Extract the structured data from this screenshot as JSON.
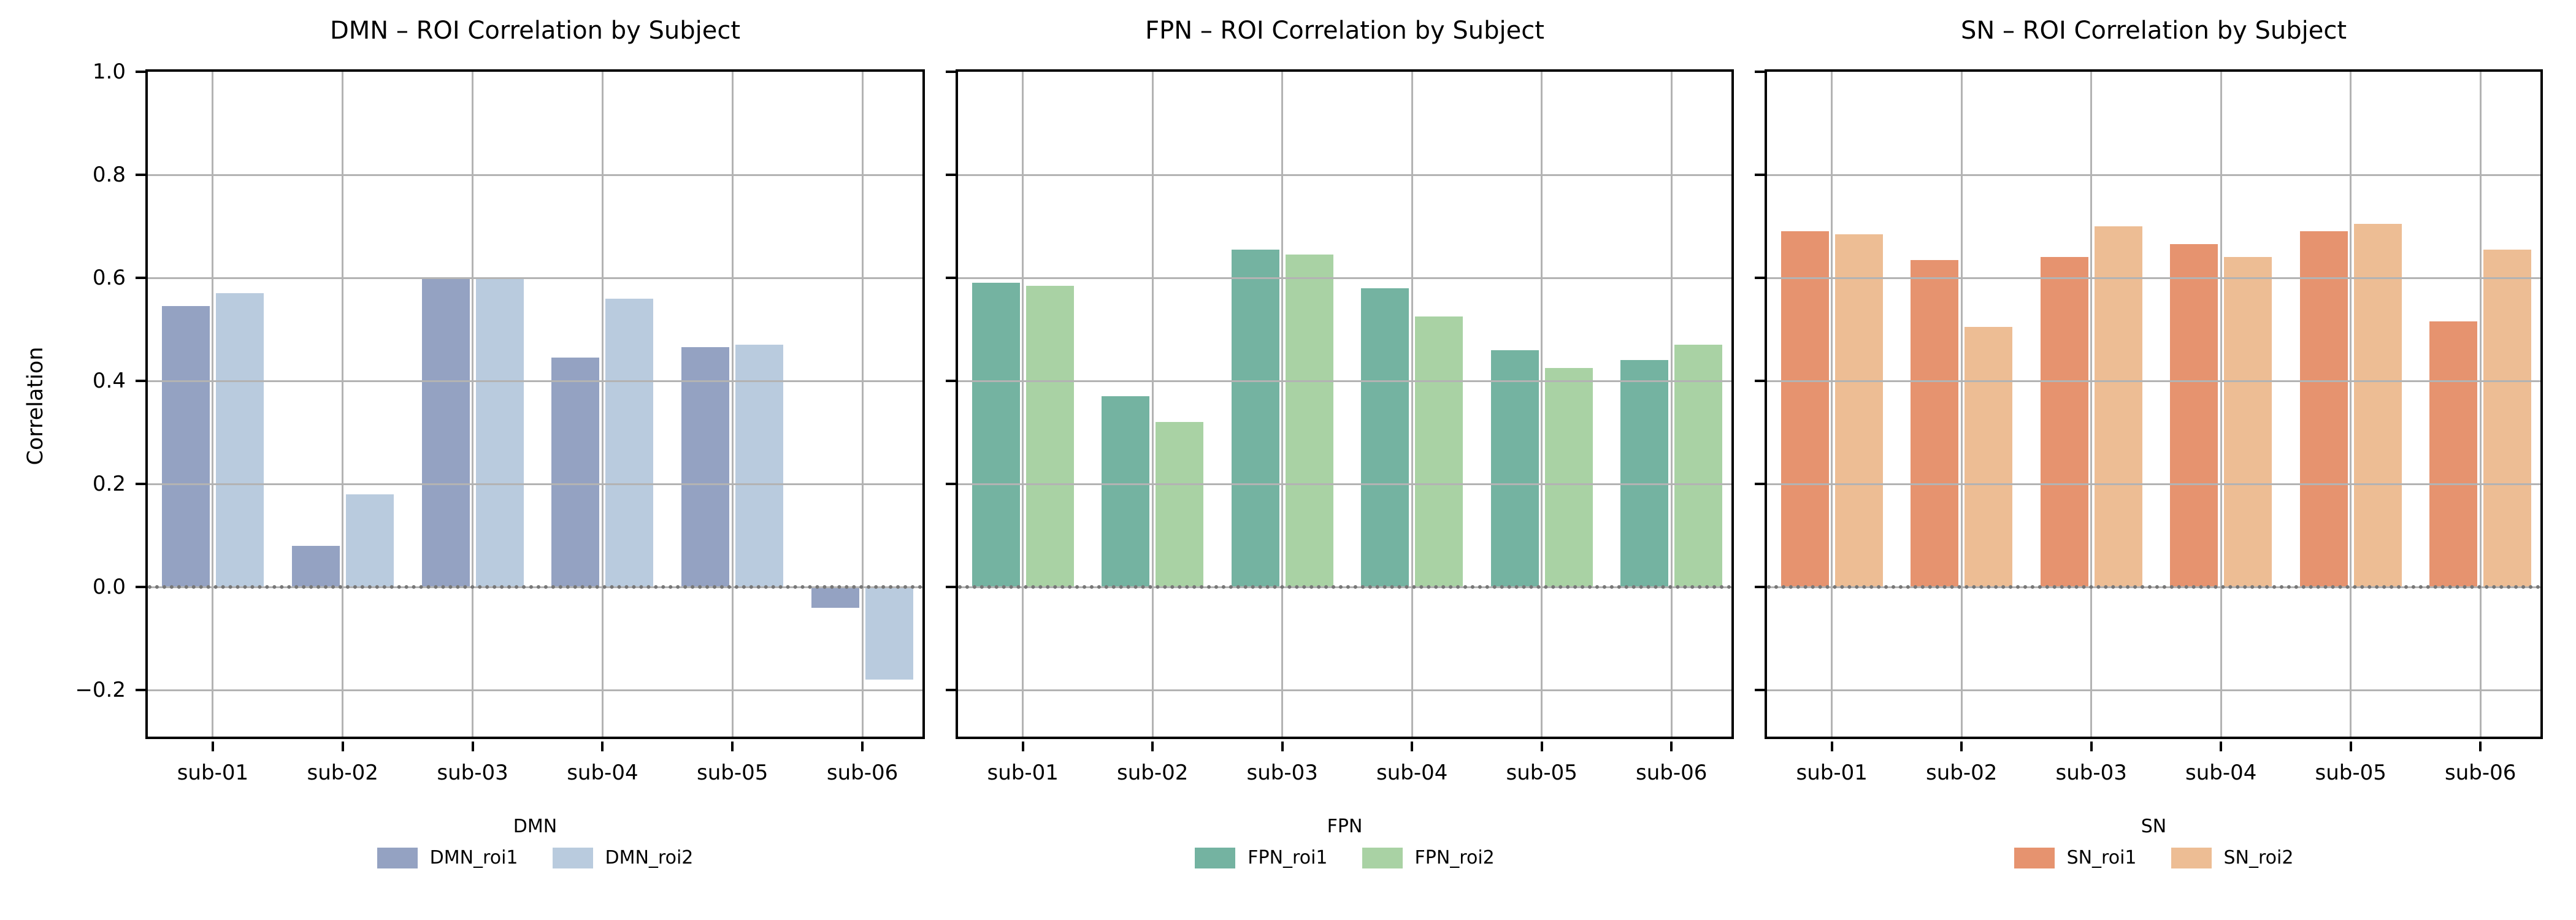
{
  "figure": {
    "ylabel": "Correlation",
    "background": "#ffffff",
    "spine_color": "#000000",
    "grid_color": "#b3b3b3",
    "zero_line_color": "#777777"
  },
  "chart_data": [
    {
      "type": "bar",
      "title": "DMN – ROI Correlation by Subject",
      "legend_title": "DMN",
      "legend_position": "below center",
      "categories": [
        "sub-01",
        "sub-02",
        "sub-03",
        "sub-04",
        "sub-05",
        "sub-06"
      ],
      "series": [
        {
          "name": "DMN_roi1",
          "color": "#94a2c2",
          "values": [
            0.545,
            0.08,
            0.598,
            0.445,
            0.465,
            -0.04
          ]
        },
        {
          "name": "DMN_roi2",
          "color": "#b9cbde",
          "values": [
            0.57,
            0.18,
            0.6,
            0.56,
            0.47,
            -0.18
          ]
        }
      ],
      "ylabel": "Correlation",
      "ylim": [
        -0.3,
        1.0
      ],
      "yticks": [
        1.0,
        0.8,
        0.6,
        0.4,
        0.2,
        0.0,
        -0.2
      ],
      "ytick_labels": [
        "1.0",
        "0.8",
        "0.6",
        "0.4",
        "0.2",
        "0.0",
        "−0.2"
      ],
      "grid": true,
      "zero_line": "dotted"
    },
    {
      "type": "bar",
      "title": "FPN – ROI Correlation by Subject",
      "legend_title": "FPN",
      "legend_position": "below center",
      "categories": [
        "sub-01",
        "sub-02",
        "sub-03",
        "sub-04",
        "sub-05",
        "sub-06"
      ],
      "series": [
        {
          "name": "FPN_roi1",
          "color": "#74b3a1",
          "values": [
            0.59,
            0.37,
            0.655,
            0.58,
            0.46,
            0.44
          ]
        },
        {
          "name": "FPN_roi2",
          "color": "#a9d2a4",
          "values": [
            0.585,
            0.32,
            0.645,
            0.525,
            0.425,
            0.47
          ]
        }
      ],
      "ylabel": "Correlation",
      "ylim": [
        -0.3,
        1.0
      ],
      "yticks": [
        1.0,
        0.8,
        0.6,
        0.4,
        0.2,
        0.0,
        -0.2
      ],
      "ytick_labels": [
        "1.0",
        "0.8",
        "0.6",
        "0.4",
        "0.2",
        "0.0",
        "−0.2"
      ],
      "grid": true,
      "zero_line": "dotted"
    },
    {
      "type": "bar",
      "title": "SN – ROI Correlation by Subject",
      "legend_title": "SN",
      "legend_position": "below center",
      "categories": [
        "sub-01",
        "sub-02",
        "sub-03",
        "sub-04",
        "sub-05",
        "sub-06"
      ],
      "series": [
        {
          "name": "SN_roi1",
          "color": "#e6936f",
          "values": [
            0.69,
            0.635,
            0.64,
            0.665,
            0.69,
            0.515
          ]
        },
        {
          "name": "SN_roi2",
          "color": "#edbd94",
          "values": [
            0.685,
            0.505,
            0.7,
            0.64,
            0.705,
            0.655
          ]
        }
      ],
      "ylabel": "Correlation",
      "ylim": [
        -0.3,
        1.0
      ],
      "yticks": [
        1.0,
        0.8,
        0.6,
        0.4,
        0.2,
        0.0,
        -0.2
      ],
      "ytick_labels": [
        "1.0",
        "0.8",
        "0.6",
        "0.4",
        "0.2",
        "0.0",
        "−0.2"
      ],
      "grid": true,
      "zero_line": "dotted"
    }
  ]
}
